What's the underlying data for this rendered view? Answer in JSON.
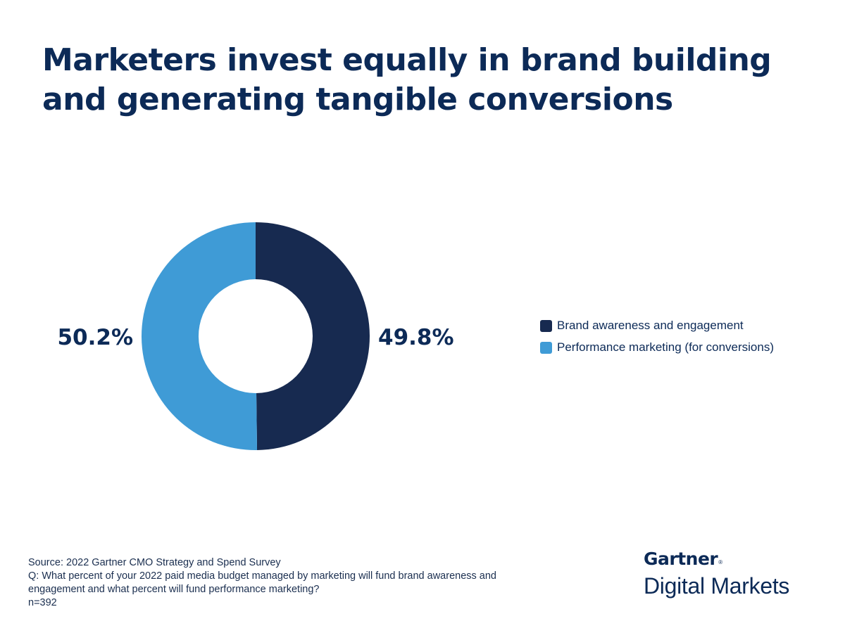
{
  "title": "Marketers invest equally in brand building and generating tangible conversions",
  "chart_data": {
    "type": "pie",
    "donut": true,
    "slices": [
      {
        "name": "Brand awareness and engagement",
        "value": 49.8,
        "label": "49.8%",
        "color": "#172a50"
      },
      {
        "name": "Performance marketing (for conversions)",
        "value": 50.2,
        "label": "50.2%",
        "color": "#3f9bd6"
      }
    ],
    "legend_position": "right"
  },
  "legend": [
    {
      "label": "Brand awareness and engagement",
      "color": "#172a50"
    },
    {
      "label": "Performance marketing (for conversions)",
      "color": "#3f9bd6"
    }
  ],
  "footer": {
    "source": "Source: 2022 Gartner CMO Strategy and Spend Survey",
    "question_line1": "Q: What percent of your 2022 paid media budget managed by marketing will fund brand awareness and",
    "question_line2": "engagement and what percent will fund performance marketing?",
    "sample": "n=392"
  },
  "brand": {
    "name": "Gartner",
    "reg": "®",
    "sub": "Digital Markets"
  }
}
